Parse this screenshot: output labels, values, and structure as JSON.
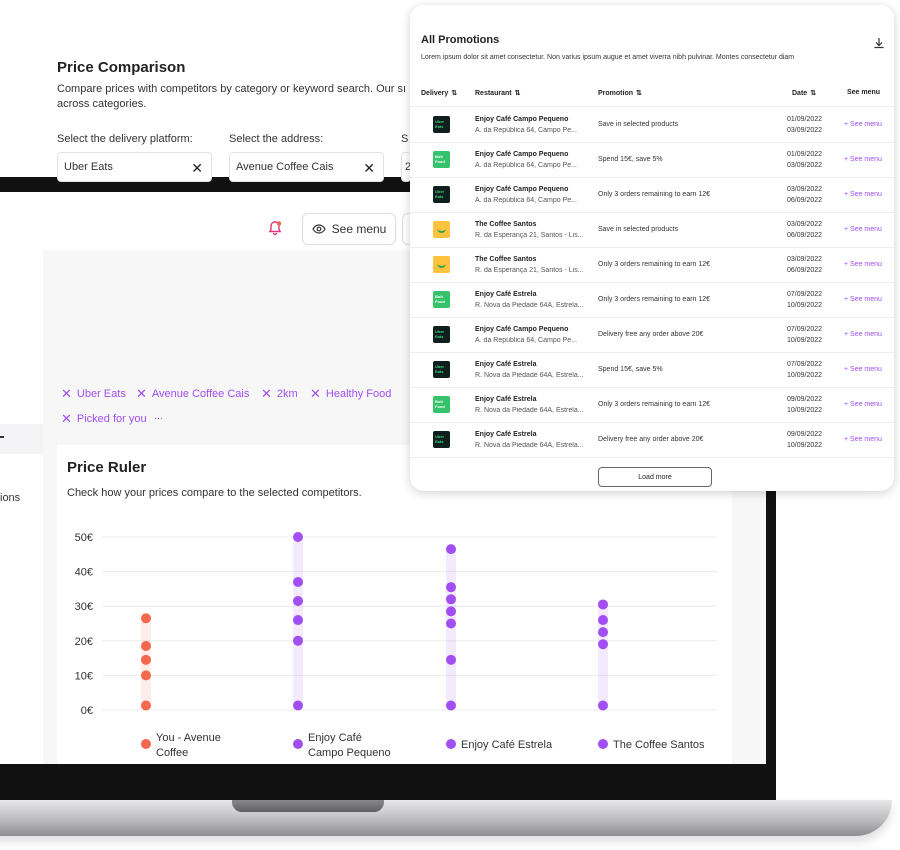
{
  "header": {
    "see_menu_label": "See menu",
    "icons": [
      "bell-icon",
      "eye-icon"
    ]
  },
  "sidebar": {
    "partial_label": "ions"
  },
  "price_comparison": {
    "title": "Price Comparison",
    "description": "Compare prices with competitors by category or keyword search. Our sı across categories.",
    "delivery_label": "Select the delivery platform:",
    "delivery_value": "Uber Eats",
    "address_label": "Select the address:",
    "address_value": "Avenue Coffee Cais",
    "third_label": "S",
    "third_value": "2",
    "chips": [
      "Uber Eats",
      "Avenue Coffee Cais",
      "2km",
      "Healthy Food",
      "Picked for you"
    ],
    "chips_more": "..."
  },
  "price_ruler": {
    "title": "Price Ruler",
    "description": "Check how your prices compare to the selected competitors."
  },
  "chart_data": {
    "type": "scatter",
    "title": "Price Ruler",
    "ylim": [
      0,
      50
    ],
    "y_ticks": [
      "50€",
      "40€",
      "30€",
      "20€",
      "10€",
      "0€"
    ],
    "grid": true,
    "legend_position": "bottom",
    "series": [
      {
        "name": "You - Avenue Coffee",
        "label_lines": [
          "You - Avenue",
          "Coffee"
        ],
        "color": "#f4684e",
        "values": [
          26.5,
          18.5,
          14.5,
          10,
          1.3
        ]
      },
      {
        "name": "Enjoy Café Campo Pequeno",
        "label_lines": [
          "Enjoy Café",
          "Campo Pequeno"
        ],
        "color": "#a14ff2",
        "values": [
          50,
          37,
          31.5,
          26,
          20,
          1.3
        ]
      },
      {
        "name": "Enjoy Café Estrela",
        "label_lines": [
          "Enjoy Café Estrela"
        ],
        "color": "#a14ff2",
        "values": [
          46.5,
          35.5,
          32,
          28.5,
          25,
          14.5,
          1.3
        ]
      },
      {
        "name": "The Coffee Santos",
        "label_lines": [
          "The Coffee Santos"
        ],
        "color": "#a14ff2",
        "values": [
          30.5,
          26,
          22.5,
          19,
          1.3
        ]
      }
    ]
  },
  "promotions": {
    "title": "All Promotions",
    "subtitle": "Lorem ipsum dolor sit amet consectetur. Non varius ipsum augue et amet viverra nibh pulvinar. Montes consectetur diam",
    "columns": {
      "delivery": "Delivery",
      "restaurant": "Restaurant",
      "promotion": "Promotion",
      "date": "Date",
      "see_menu": "See menu"
    },
    "rows": [
      {
        "platform": "Uber Eats",
        "logo": "ue",
        "logo_text": "Uber Eats",
        "restaurant": "Enjoy Café Campo Pequeno",
        "address": "A. da República 64, Campo Pe...",
        "promotion": "Save in selected products",
        "date_from": "01/09/2022",
        "date_to": "03/09/2022",
        "see_menu": "+ See menu"
      },
      {
        "platform": "Bolt Food",
        "logo": "bf",
        "logo_text": "Bolt Food",
        "restaurant": "Enjoy Café Campo Pequeno",
        "address": "A. da República 64, Campo Pe...",
        "promotion": "Spend 15€, save 5%",
        "date_from": "01/09/2022",
        "date_to": "03/09/2022",
        "see_menu": "+ See menu"
      },
      {
        "platform": "Uber Eats",
        "logo": "ue",
        "logo_text": "Uber Eats",
        "restaurant": "Enjoy Café Campo Pequeno",
        "address": "A. da República 64, Campo Pe...",
        "promotion": "Only 3 orders remaining to earn 12€",
        "date_from": "03/09/2022",
        "date_to": "06/09/2022",
        "see_menu": "+ See menu"
      },
      {
        "platform": "Glovo",
        "logo": "gl",
        "logo_text": "",
        "restaurant": "The Coffee Santos",
        "address": "R. da Esperança 21, Santos - Lis...",
        "promotion": "Save in selected products",
        "date_from": "03/09/2022",
        "date_to": "06/09/2022",
        "see_menu": "+ See menu"
      },
      {
        "platform": "Glovo",
        "logo": "gl",
        "logo_text": "",
        "restaurant": "The Coffee Santos",
        "address": "R. da Esperança 21, Santos - Lis...",
        "promotion": "Only 3 orders remaining to earn 12€",
        "date_from": "03/09/2022",
        "date_to": "06/09/2022",
        "see_menu": "+ See menu"
      },
      {
        "platform": "Bolt Food",
        "logo": "bf",
        "logo_text": "Bolt Food",
        "restaurant": "Enjoy Café Estrela",
        "address": "R. Nova da Piedade 64A, Estrela...",
        "promotion": "Only 3 orders remaining to earn 12€",
        "date_from": "07/09/2022",
        "date_to": "10/09/2022",
        "see_menu": "+ See menu"
      },
      {
        "platform": "Uber Eats",
        "logo": "ue",
        "logo_text": "Uber Eats",
        "restaurant": "Enjoy Café Campo Pequeno",
        "address": "A. da República 64, Campo Pe...",
        "promotion": "Delivery free any order above 20€",
        "date_from": "07/09/2022",
        "date_to": "10/09/2022",
        "see_menu": "+ See menu"
      },
      {
        "platform": "Uber Eats",
        "logo": "ue",
        "logo_text": "Uber Eats",
        "restaurant": "Enjoy Café Estrela",
        "address": "R. Nova da Piedade 64A, Estrela...",
        "promotion": "Spend 15€, save 5%",
        "date_from": "07/09/2022",
        "date_to": "10/09/2022",
        "see_menu": "+ See menu"
      },
      {
        "platform": "Bolt Food",
        "logo": "bf",
        "logo_text": "Bolt Food",
        "restaurant": "Enjoy Café Estrela",
        "address": "R. Nova da Piedade 64A, Estrela...",
        "promotion": "Only 3 orders remaining to earn 12€",
        "date_from": "09/09/2022",
        "date_to": "10/09/2022",
        "see_menu": "+ See menu"
      },
      {
        "platform": "Uber Eats",
        "logo": "ue",
        "logo_text": "Uber Eats",
        "restaurant": "Enjoy Café Estrela",
        "address": "R. Nova da Piedade 64A, Estrela...",
        "promotion": "Delivery free any order above 20€",
        "date_from": "09/09/2022",
        "date_to": "10/09/2022",
        "see_menu": "+ See menu"
      }
    ],
    "load_more": "Load more"
  }
}
